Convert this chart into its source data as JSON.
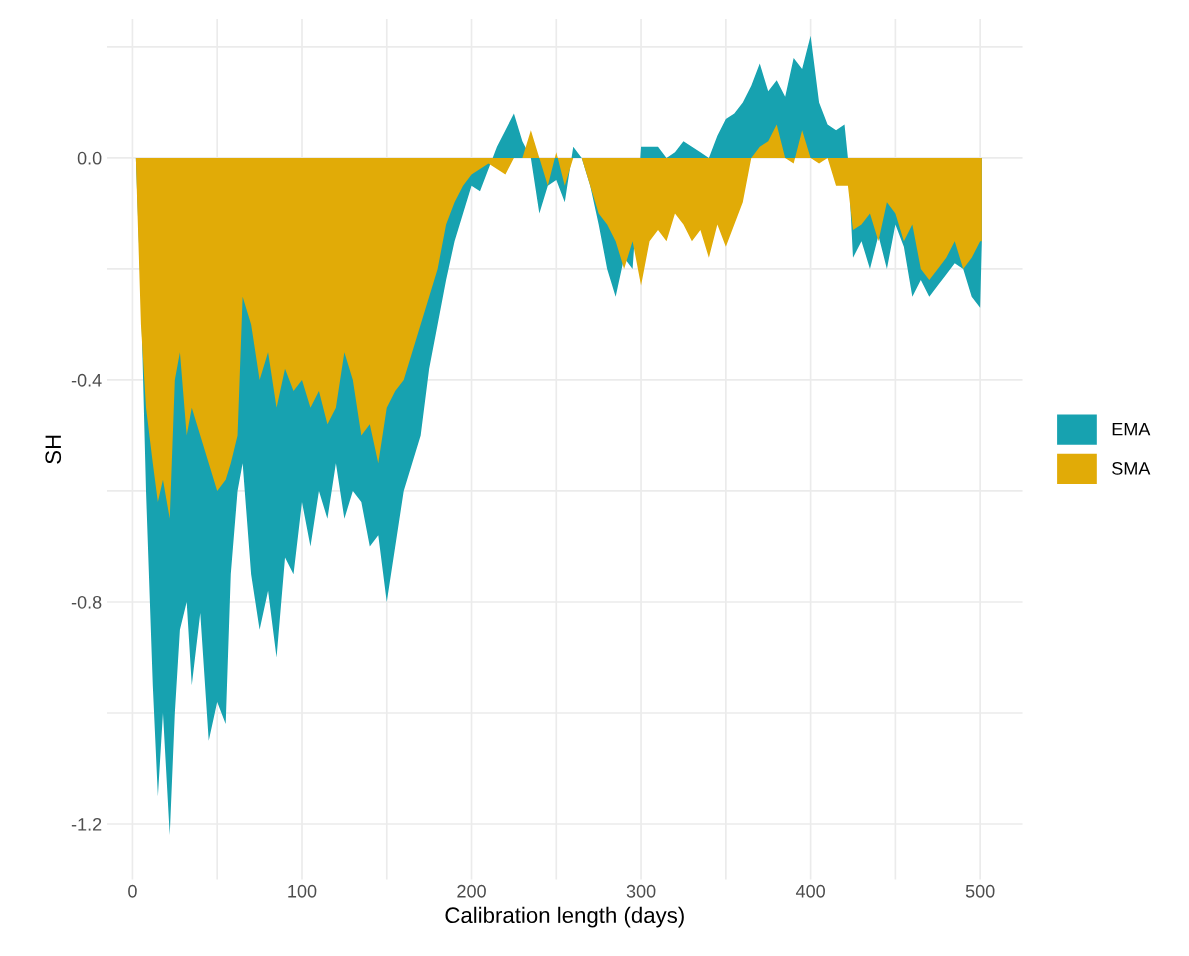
{
  "chart_data": {
    "type": "area",
    "xlabel": "Calibration length (days)",
    "ylabel": "SH",
    "x": [
      2,
      5,
      8,
      12,
      15,
      18,
      22,
      25,
      28,
      32,
      35,
      40,
      45,
      50,
      55,
      58,
      62,
      65,
      70,
      75,
      80,
      85,
      90,
      95,
      100,
      105,
      110,
      115,
      120,
      125,
      130,
      135,
      140,
      145,
      150,
      155,
      160,
      165,
      170,
      175,
      180,
      185,
      190,
      195,
      200,
      205,
      210,
      215,
      220,
      225,
      230,
      235,
      240,
      245,
      250,
      255,
      260,
      265,
      270,
      275,
      280,
      285,
      290,
      295,
      300,
      305,
      310,
      315,
      320,
      325,
      330,
      335,
      340,
      345,
      350,
      355,
      360,
      365,
      370,
      375,
      380,
      385,
      390,
      395,
      400,
      405,
      410,
      415,
      420,
      422,
      425,
      430,
      435,
      440,
      445,
      450,
      455,
      460,
      465,
      470,
      475,
      480,
      485,
      490,
      495,
      500,
      501
    ],
    "series": [
      {
        "name": "EMA",
        "color": "#17a2b0",
        "values": [
          0,
          -0.25,
          -0.6,
          -0.95,
          -1.15,
          -1.0,
          -1.22,
          -1.0,
          -0.85,
          -0.8,
          -0.95,
          -0.82,
          -1.05,
          -0.98,
          -1.02,
          -0.75,
          -0.6,
          -0.55,
          -0.75,
          -0.85,
          -0.78,
          -0.9,
          -0.72,
          -0.75,
          -0.62,
          -0.7,
          -0.6,
          -0.65,
          -0.55,
          -0.65,
          -0.6,
          -0.62,
          -0.7,
          -0.68,
          -0.8,
          -0.7,
          -0.6,
          -0.55,
          -0.5,
          -0.38,
          -0.3,
          -0.22,
          -0.15,
          -0.1,
          -0.05,
          -0.06,
          -0.02,
          0.02,
          0.05,
          0.08,
          0.03,
          0.0,
          -0.1,
          -0.05,
          -0.04,
          -0.08,
          0.02,
          0.0,
          -0.05,
          -0.12,
          -0.2,
          -0.25,
          -0.18,
          -0.2,
          0.02,
          0.02,
          0.02,
          0.0,
          0.01,
          0.03,
          0.02,
          0.01,
          0.0,
          0.04,
          0.07,
          0.08,
          0.1,
          0.13,
          0.17,
          0.12,
          0.14,
          0.11,
          0.18,
          0.16,
          0.22,
          0.1,
          0.06,
          0.05,
          0.06,
          0.0,
          -0.18,
          -0.15,
          -0.2,
          -0.14,
          -0.2,
          -0.12,
          -0.16,
          -0.25,
          -0.22,
          -0.25,
          -0.23,
          -0.21,
          -0.19,
          -0.2,
          -0.25,
          -0.27,
          -0.15
        ]
      },
      {
        "name": "SMA",
        "color": "#e1ab07",
        "values": [
          0,
          -0.3,
          -0.45,
          -0.55,
          -0.62,
          -0.58,
          -0.65,
          -0.4,
          -0.35,
          -0.5,
          -0.45,
          -0.5,
          -0.55,
          -0.6,
          -0.58,
          -0.55,
          -0.5,
          -0.25,
          -0.3,
          -0.4,
          -0.35,
          -0.45,
          -0.38,
          -0.42,
          -0.4,
          -0.45,
          -0.42,
          -0.48,
          -0.45,
          -0.35,
          -0.4,
          -0.5,
          -0.48,
          -0.55,
          -0.45,
          -0.42,
          -0.4,
          -0.35,
          -0.3,
          -0.25,
          -0.2,
          -0.12,
          -0.08,
          -0.05,
          -0.03,
          -0.02,
          -0.01,
          -0.02,
          -0.03,
          0.0,
          0.0,
          0.05,
          0.0,
          -0.05,
          0.01,
          -0.05,
          0.0,
          0.0,
          -0.05,
          -0.1,
          -0.12,
          -0.15,
          -0.2,
          -0.15,
          -0.23,
          -0.15,
          -0.13,
          -0.15,
          -0.1,
          -0.12,
          -0.15,
          -0.13,
          -0.18,
          -0.12,
          -0.16,
          -0.12,
          -0.08,
          0.0,
          0.02,
          0.03,
          0.06,
          0.0,
          -0.01,
          0.05,
          0.0,
          -0.01,
          0.0,
          -0.05,
          -0.05,
          -0.05,
          -0.13,
          -0.12,
          -0.1,
          -0.15,
          -0.08,
          -0.1,
          -0.15,
          -0.12,
          -0.2,
          -0.22,
          -0.2,
          -0.18,
          -0.15,
          -0.2,
          -0.18,
          -0.15,
          -0.15
        ]
      }
    ],
    "xlim": [
      -15,
      525
    ],
    "ylim": [
      -1.3,
      0.25
    ],
    "xticks": [
      0,
      {
        "value": 50,
        "label": null
      },
      100,
      {
        "value": 150,
        "label": null
      },
      200,
      {
        "value": 250,
        "label": null
      },
      300,
      {
        "value": 350,
        "label": null
      },
      400,
      {
        "value": 450,
        "label": null
      },
      500
    ],
    "yticks": [
      {
        "value": -1.2,
        "label": "-1.2"
      },
      {
        "value": -1.0,
        "label": null
      },
      {
        "value": -0.8,
        "label": "-0.8"
      },
      {
        "value": -0.6,
        "label": null
      },
      {
        "value": -0.4,
        "label": "-0.4"
      },
      {
        "value": -0.2,
        "label": null
      },
      {
        "value": 0,
        "label": "0.0"
      },
      {
        "value": 0.2,
        "label": null
      }
    ],
    "grid": true,
    "legend": "right"
  }
}
